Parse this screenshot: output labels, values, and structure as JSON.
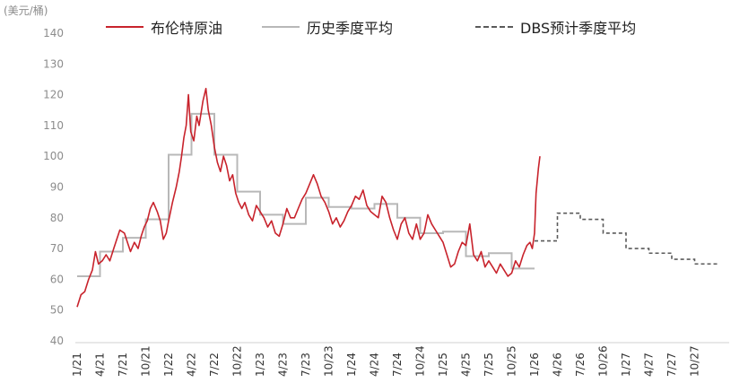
{
  "chart_data": {
    "type": "line",
    "ylabel": "(美元/桶)",
    "ylim": [
      40,
      140
    ],
    "yticks": [
      40,
      50,
      60,
      70,
      80,
      90,
      100,
      110,
      120,
      130,
      140
    ],
    "xticks": [
      "1/21",
      "4/21",
      "7/21",
      "10/21",
      "1/22",
      "4/22",
      "7/22",
      "10/22",
      "1/23",
      "4/23",
      "7/23",
      "10/23",
      "1/24",
      "4/24",
      "7/24",
      "10/24",
      "1/25",
      "4/25",
      "7/25",
      "10/25",
      "1/26",
      "4/26",
      "7/26",
      "10/26",
      "1/27",
      "4/27",
      "7/27",
      "10/27"
    ],
    "grid": false,
    "legend_position": "top",
    "series": [
      {
        "name": "布伦特原油",
        "style": "solid",
        "color": "#c8232c",
        "points": [
          [
            0,
            51
          ],
          [
            0.5,
            55
          ],
          [
            1,
            56
          ],
          [
            1.5,
            60
          ],
          [
            2,
            63
          ],
          [
            2.4,
            69
          ],
          [
            2.8,
            65
          ],
          [
            3.3,
            66
          ],
          [
            3.8,
            68
          ],
          [
            4.3,
            66
          ],
          [
            4.8,
            70
          ],
          [
            5.2,
            73
          ],
          [
            5.6,
            76
          ],
          [
            6.2,
            75
          ],
          [
            6.6,
            72
          ],
          [
            7,
            69
          ],
          [
            7.5,
            72
          ],
          [
            8,
            70
          ],
          [
            8.4,
            74
          ],
          [
            8.8,
            77
          ],
          [
            9.2,
            79
          ],
          [
            9.6,
            83
          ],
          [
            10,
            85
          ],
          [
            10.5,
            82
          ],
          [
            10.9,
            79
          ],
          [
            11.3,
            73
          ],
          [
            11.7,
            75
          ],
          [
            12,
            79
          ],
          [
            12.5,
            85
          ],
          [
            13,
            90
          ],
          [
            13.4,
            95
          ],
          [
            13.7,
            100
          ],
          [
            14,
            106
          ],
          [
            14.3,
            110
          ],
          [
            14.6,
            120
          ],
          [
            14.9,
            108
          ],
          [
            15.3,
            105
          ],
          [
            15.7,
            113
          ],
          [
            16,
            110
          ],
          [
            16.5,
            118
          ],
          [
            16.9,
            122
          ],
          [
            17.2,
            115
          ],
          [
            17.6,
            110
          ],
          [
            18,
            103
          ],
          [
            18.4,
            98
          ],
          [
            18.8,
            95
          ],
          [
            19.2,
            100
          ],
          [
            19.6,
            97
          ],
          [
            20,
            92
          ],
          [
            20.4,
            94
          ],
          [
            20.8,
            88
          ],
          [
            21.2,
            85
          ],
          [
            21.6,
            83
          ],
          [
            22,
            85
          ],
          [
            22.5,
            81
          ],
          [
            23,
            79
          ],
          [
            23.5,
            84
          ],
          [
            24,
            82
          ],
          [
            24.5,
            80
          ],
          [
            25,
            77
          ],
          [
            25.5,
            79
          ],
          [
            26,
            75
          ],
          [
            26.5,
            74
          ],
          [
            27,
            78
          ],
          [
            27.5,
            83
          ],
          [
            28,
            80
          ],
          [
            28.5,
            80
          ],
          [
            29,
            83
          ],
          [
            29.5,
            86
          ],
          [
            30,
            88
          ],
          [
            30.5,
            91
          ],
          [
            31,
            94
          ],
          [
            31.5,
            91
          ],
          [
            32,
            87
          ],
          [
            32.5,
            85
          ],
          [
            33,
            82
          ],
          [
            33.5,
            78
          ],
          [
            34,
            80
          ],
          [
            34.5,
            77
          ],
          [
            35,
            79
          ],
          [
            35.5,
            82
          ],
          [
            36,
            84
          ],
          [
            36.5,
            87
          ],
          [
            37,
            86
          ],
          [
            37.5,
            89
          ],
          [
            38,
            84
          ],
          [
            38.5,
            82
          ],
          [
            39,
            81
          ],
          [
            39.5,
            80
          ],
          [
            40,
            87
          ],
          [
            40.5,
            85
          ],
          [
            41,
            80
          ],
          [
            41.5,
            76
          ],
          [
            42,
            73
          ],
          [
            42.5,
            78
          ],
          [
            43,
            80
          ],
          [
            43.5,
            75
          ],
          [
            44,
            73
          ],
          [
            44.5,
            78
          ],
          [
            45,
            73
          ],
          [
            45.5,
            75
          ],
          [
            46,
            81
          ],
          [
            46.5,
            78
          ],
          [
            47,
            76
          ],
          [
            47.5,
            74
          ],
          [
            48,
            72
          ],
          [
            48.5,
            68
          ],
          [
            49,
            64
          ],
          [
            49.5,
            65
          ],
          [
            50,
            69
          ],
          [
            50.5,
            72
          ],
          [
            51,
            71
          ],
          [
            51.5,
            78
          ],
          [
            52,
            68
          ],
          [
            52.5,
            66
          ],
          [
            53,
            69
          ],
          [
            53.5,
            64
          ],
          [
            54,
            66
          ],
          [
            54.5,
            64
          ],
          [
            55,
            62
          ],
          [
            55.5,
            65
          ],
          [
            56,
            63
          ],
          [
            56.5,
            61
          ],
          [
            57,
            62
          ],
          [
            57.5,
            66
          ],
          [
            58,
            64
          ],
          [
            58.5,
            68
          ],
          [
            59,
            71
          ],
          [
            59.4,
            72
          ],
          [
            59.7,
            70
          ],
          [
            60,
            75
          ],
          [
            60.2,
            88
          ],
          [
            60.5,
            96
          ],
          [
            60.7,
            100
          ]
        ]
      },
      {
        "name": "历史季度平均",
        "style": "step",
        "color": "#b8b8b8",
        "values": [
          61,
          69,
          73.5,
          79.5,
          100.5,
          113.8,
          100.5,
          88.5,
          81,
          78,
          86.5,
          83.5,
          83,
          84.5,
          80,
          75,
          75.5,
          67.5,
          68.5,
          63.5
        ]
      },
      {
        "name": "DBS预计季度平均",
        "style": "dashed-step",
        "color": "#5a5a5a",
        "values": [
          72.5,
          81.5,
          79.5,
          75,
          70,
          68.5,
          66.5,
          65
        ]
      }
    ]
  }
}
